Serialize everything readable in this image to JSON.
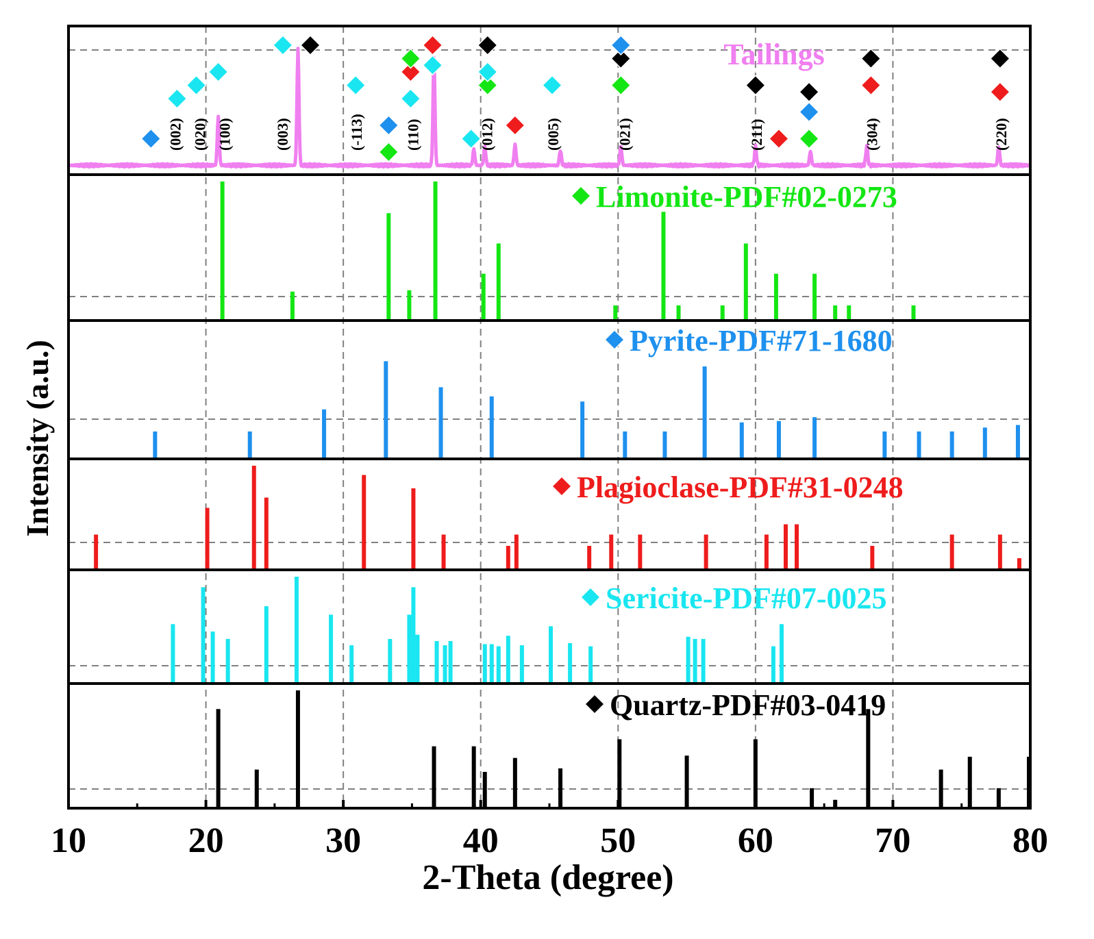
{
  "chart_data": {
    "type": "bar",
    "xlabel": "2-Theta (degree)",
    "ylabel": "Intensity (a.u.)",
    "xlim": [
      10,
      80
    ],
    "xticks": [
      10,
      20,
      30,
      40,
      50,
      60,
      70,
      80
    ],
    "grid": true,
    "tailings": {
      "name": "Tailings",
      "color": "#f07ff0",
      "baseline": 0.08,
      "peaks": [
        {
          "x": 20.9,
          "y": 0.42
        },
        {
          "x": 26.7,
          "y": 1.0
        },
        {
          "x": 36.6,
          "y": 0.92
        },
        {
          "x": 39.5,
          "y": 0.14
        },
        {
          "x": 40.3,
          "y": 0.16
        },
        {
          "x": 42.5,
          "y": 0.18
        },
        {
          "x": 45.8,
          "y": 0.13
        },
        {
          "x": 50.2,
          "y": 0.16
        },
        {
          "x": 60.0,
          "y": 0.16
        },
        {
          "x": 64.0,
          "y": 0.12
        },
        {
          "x": 68.1,
          "y": 0.17
        },
        {
          "x": 77.7,
          "y": 0.16
        }
      ],
      "hkl_labels": [
        {
          "x": 17.7,
          "text": "(002)"
        },
        {
          "x": 19.5,
          "text": "(020)"
        },
        {
          "x": 21.3,
          "text": "(100)"
        },
        {
          "x": 25.5,
          "text": "(003)"
        },
        {
          "x": 30.9,
          "text": "(-113)"
        },
        {
          "x": 35.0,
          "text": "(110)"
        },
        {
          "x": 40.4,
          "text": "(012)"
        },
        {
          "x": 45.2,
          "text": "(005)"
        },
        {
          "x": 50.4,
          "text": "(021)"
        },
        {
          "x": 60.0,
          "text": "(211)"
        },
        {
          "x": 68.4,
          "text": "(304)"
        },
        {
          "x": 77.8,
          "text": "(220)"
        }
      ],
      "markers": [
        {
          "x": 16.0,
          "level": 1,
          "phase": "pyrite"
        },
        {
          "x": 17.9,
          "level": 4,
          "phase": "sericite"
        },
        {
          "x": 19.3,
          "level": 5,
          "phase": "sericite"
        },
        {
          "x": 20.9,
          "level": 6,
          "phase": "sericite"
        },
        {
          "x": 25.6,
          "level": 8,
          "phase": "sericite"
        },
        {
          "x": 27.6,
          "level": 8,
          "phase": "quartz"
        },
        {
          "x": 30.9,
          "level": 5,
          "phase": "sericite"
        },
        {
          "x": 33.3,
          "level": 0,
          "phase": "limonite"
        },
        {
          "x": 33.3,
          "level": 2,
          "phase": "pyrite"
        },
        {
          "x": 34.9,
          "level": 4,
          "phase": "sericite"
        },
        {
          "x": 34.9,
          "level": 6,
          "phase": "plagioclase"
        },
        {
          "x": 34.9,
          "level": 7,
          "phase": "limonite"
        },
        {
          "x": 36.5,
          "level": 6.5,
          "phase": "sericite"
        },
        {
          "x": 36.5,
          "level": 8,
          "phase": "plagioclase"
        },
        {
          "x": 39.3,
          "level": 1,
          "phase": "sericite"
        },
        {
          "x": 40.5,
          "level": 5,
          "phase": "limonite"
        },
        {
          "x": 40.5,
          "level": 6,
          "phase": "sericite"
        },
        {
          "x": 40.5,
          "level": 8,
          "phase": "quartz"
        },
        {
          "x": 42.5,
          "level": 2,
          "phase": "plagioclase"
        },
        {
          "x": 45.2,
          "level": 5,
          "phase": "sericite"
        },
        {
          "x": 50.2,
          "level": 5,
          "phase": "limonite"
        },
        {
          "x": 50.2,
          "level": 7,
          "phase": "quartz"
        },
        {
          "x": 50.2,
          "level": 8,
          "phase": "pyrite"
        },
        {
          "x": 60.0,
          "level": 5,
          "phase": "quartz"
        },
        {
          "x": 61.7,
          "level": 1,
          "phase": "plagioclase"
        },
        {
          "x": 63.9,
          "level": 1,
          "phase": "limonite"
        },
        {
          "x": 63.9,
          "level": 3,
          "phase": "pyrite"
        },
        {
          "x": 63.9,
          "level": 4.5,
          "phase": "quartz"
        },
        {
          "x": 68.4,
          "level": 5,
          "phase": "plagioclase"
        },
        {
          "x": 68.4,
          "level": 7,
          "phase": "quartz"
        },
        {
          "x": 77.8,
          "level": 4.5,
          "phase": "plagioclase"
        },
        {
          "x": 77.8,
          "level": 7,
          "phase": "quartz"
        }
      ]
    },
    "references": [
      {
        "key": "limonite",
        "name": "Limonite-PDF#02-0273",
        "color": "#14e614",
        "peaks": [
          {
            "x": 21.2,
            "y": 1.0
          },
          {
            "x": 26.3,
            "y": 0.2
          },
          {
            "x": 33.3,
            "y": 0.77
          },
          {
            "x": 34.8,
            "y": 0.21
          },
          {
            "x": 36.7,
            "y": 1.0
          },
          {
            "x": 40.2,
            "y": 0.33
          },
          {
            "x": 41.3,
            "y": 0.55
          },
          {
            "x": 49.8,
            "y": 0.1
          },
          {
            "x": 53.3,
            "y": 0.78
          },
          {
            "x": 54.4,
            "y": 0.1
          },
          {
            "x": 57.6,
            "y": 0.1
          },
          {
            "x": 59.3,
            "y": 0.55
          },
          {
            "x": 61.5,
            "y": 0.33
          },
          {
            "x": 64.3,
            "y": 0.33
          },
          {
            "x": 65.8,
            "y": 0.1
          },
          {
            "x": 66.8,
            "y": 0.1
          },
          {
            "x": 71.5,
            "y": 0.1
          }
        ]
      },
      {
        "key": "pyrite",
        "name": "Pyrite-PDF#71-1680",
        "color": "#1e90ee",
        "peaks": [
          {
            "x": 16.3,
            "y": 0.2
          },
          {
            "x": 23.2,
            "y": 0.2
          },
          {
            "x": 28.6,
            "y": 0.37
          },
          {
            "x": 33.1,
            "y": 0.74
          },
          {
            "x": 37.1,
            "y": 0.54
          },
          {
            "x": 40.8,
            "y": 0.47
          },
          {
            "x": 47.4,
            "y": 0.43
          },
          {
            "x": 50.5,
            "y": 0.2
          },
          {
            "x": 53.4,
            "y": 0.2
          },
          {
            "x": 56.3,
            "y": 0.7
          },
          {
            "x": 59.0,
            "y": 0.27
          },
          {
            "x": 61.7,
            "y": 0.28
          },
          {
            "x": 64.3,
            "y": 0.31
          },
          {
            "x": 69.4,
            "y": 0.2
          },
          {
            "x": 71.9,
            "y": 0.2
          },
          {
            "x": 74.3,
            "y": 0.2
          },
          {
            "x": 76.7,
            "y": 0.23
          },
          {
            "x": 79.1,
            "y": 0.25
          }
        ]
      },
      {
        "key": "plagioclase",
        "name": "Plagioclase-PDF#31-0248",
        "color": "#ee1c1c",
        "peaks": [
          {
            "x": 12.0,
            "y": 0.33
          },
          {
            "x": 20.1,
            "y": 0.59
          },
          {
            "x": 23.5,
            "y": 1.0
          },
          {
            "x": 24.4,
            "y": 0.69
          },
          {
            "x": 31.5,
            "y": 0.91
          },
          {
            "x": 35.1,
            "y": 0.78
          },
          {
            "x": 37.3,
            "y": 0.33
          },
          {
            "x": 42.0,
            "y": 0.22
          },
          {
            "x": 42.6,
            "y": 0.33
          },
          {
            "x": 47.9,
            "y": 0.22
          },
          {
            "x": 49.5,
            "y": 0.33
          },
          {
            "x": 51.6,
            "y": 0.33
          },
          {
            "x": 56.4,
            "y": 0.33
          },
          {
            "x": 60.8,
            "y": 0.33
          },
          {
            "x": 62.2,
            "y": 0.43
          },
          {
            "x": 63.0,
            "y": 0.43
          },
          {
            "x": 68.5,
            "y": 0.22
          },
          {
            "x": 74.3,
            "y": 0.33
          },
          {
            "x": 77.8,
            "y": 0.33
          },
          {
            "x": 79.2,
            "y": 0.1
          }
        ]
      },
      {
        "key": "sericite",
        "name": "Sericite-PDF#07-0025",
        "color": "#19e6f0",
        "peaks": [
          {
            "x": 17.6,
            "y": 0.55
          },
          {
            "x": 19.8,
            "y": 0.9
          },
          {
            "x": 20.5,
            "y": 0.48
          },
          {
            "x": 21.6,
            "y": 0.41
          },
          {
            "x": 24.4,
            "y": 0.72
          },
          {
            "x": 26.6,
            "y": 1.0
          },
          {
            "x": 29.1,
            "y": 0.64
          },
          {
            "x": 30.6,
            "y": 0.35
          },
          {
            "x": 33.4,
            "y": 0.41
          },
          {
            "x": 34.8,
            "y": 0.64
          },
          {
            "x": 35.1,
            "y": 0.9
          },
          {
            "x": 35.4,
            "y": 0.45
          },
          {
            "x": 36.8,
            "y": 0.39
          },
          {
            "x": 37.4,
            "y": 0.35
          },
          {
            "x": 37.8,
            "y": 0.39
          },
          {
            "x": 40.3,
            "y": 0.36
          },
          {
            "x": 40.8,
            "y": 0.36
          },
          {
            "x": 41.3,
            "y": 0.34
          },
          {
            "x": 42.0,
            "y": 0.44
          },
          {
            "x": 43.0,
            "y": 0.35
          },
          {
            "x": 45.1,
            "y": 0.53
          },
          {
            "x": 46.5,
            "y": 0.37
          },
          {
            "x": 48.0,
            "y": 0.34
          },
          {
            "x": 55.1,
            "y": 0.43
          },
          {
            "x": 55.6,
            "y": 0.41
          },
          {
            "x": 56.2,
            "y": 0.41
          },
          {
            "x": 61.3,
            "y": 0.34
          },
          {
            "x": 61.9,
            "y": 0.55
          }
        ]
      },
      {
        "key": "quartz",
        "name": "Quartz-PDF#03-0419",
        "color": "#000000",
        "peaks": [
          {
            "x": 20.9,
            "y": 0.84
          },
          {
            "x": 23.7,
            "y": 0.32
          },
          {
            "x": 26.7,
            "y": 1.0
          },
          {
            "x": 36.6,
            "y": 0.52
          },
          {
            "x": 39.5,
            "y": 0.52
          },
          {
            "x": 40.3,
            "y": 0.3
          },
          {
            "x": 42.5,
            "y": 0.42
          },
          {
            "x": 45.8,
            "y": 0.33
          },
          {
            "x": 50.1,
            "y": 0.58
          },
          {
            "x": 55.0,
            "y": 0.44
          },
          {
            "x": 60.0,
            "y": 0.58
          },
          {
            "x": 64.1,
            "y": 0.16
          },
          {
            "x": 65.8,
            "y": 0.06
          },
          {
            "x": 68.2,
            "y": 0.84
          },
          {
            "x": 73.5,
            "y": 0.32
          },
          {
            "x": 75.6,
            "y": 0.43
          },
          {
            "x": 77.7,
            "y": 0.16
          },
          {
            "x": 79.9,
            "y": 0.43
          }
        ]
      }
    ]
  }
}
